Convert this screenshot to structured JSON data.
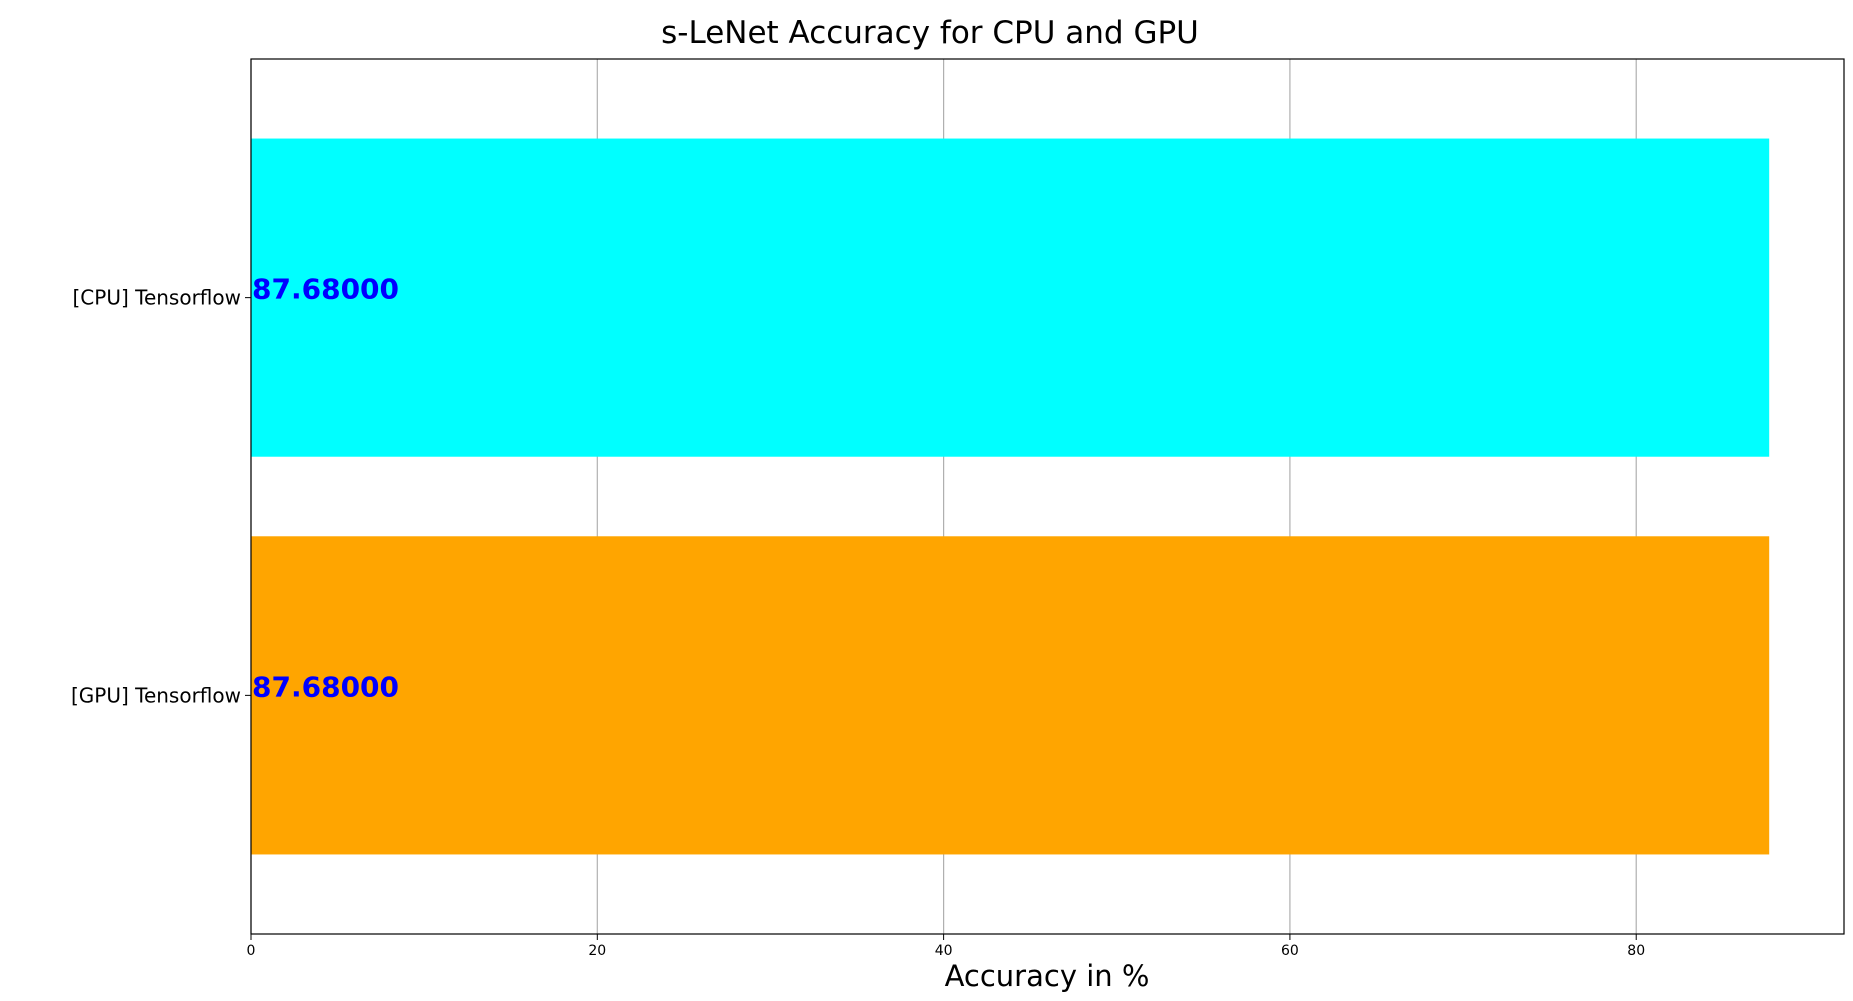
{
  "chart_data": {
    "type": "bar",
    "orientation": "horizontal",
    "title": "s-LeNet Accuracy for CPU and GPU",
    "xlabel": "Accuracy in %",
    "ylabel": "",
    "categories": [
      "[CPU] Tensorflow",
      "[GPU] Tensorflow"
    ],
    "values": [
      87.68,
      87.68
    ],
    "value_labels": [
      "87.68000",
      "87.68000"
    ],
    "bar_colors": [
      "#00ffff",
      "#ffa500"
    ],
    "label_color": "#0000ff",
    "xlim": [
      0,
      92
    ],
    "xticks": [
      0,
      20,
      40,
      60,
      80
    ],
    "xtick_labels": [
      "0",
      "20",
      "40",
      "60",
      "80"
    ],
    "grid": "vertical",
    "legend": "none"
  }
}
